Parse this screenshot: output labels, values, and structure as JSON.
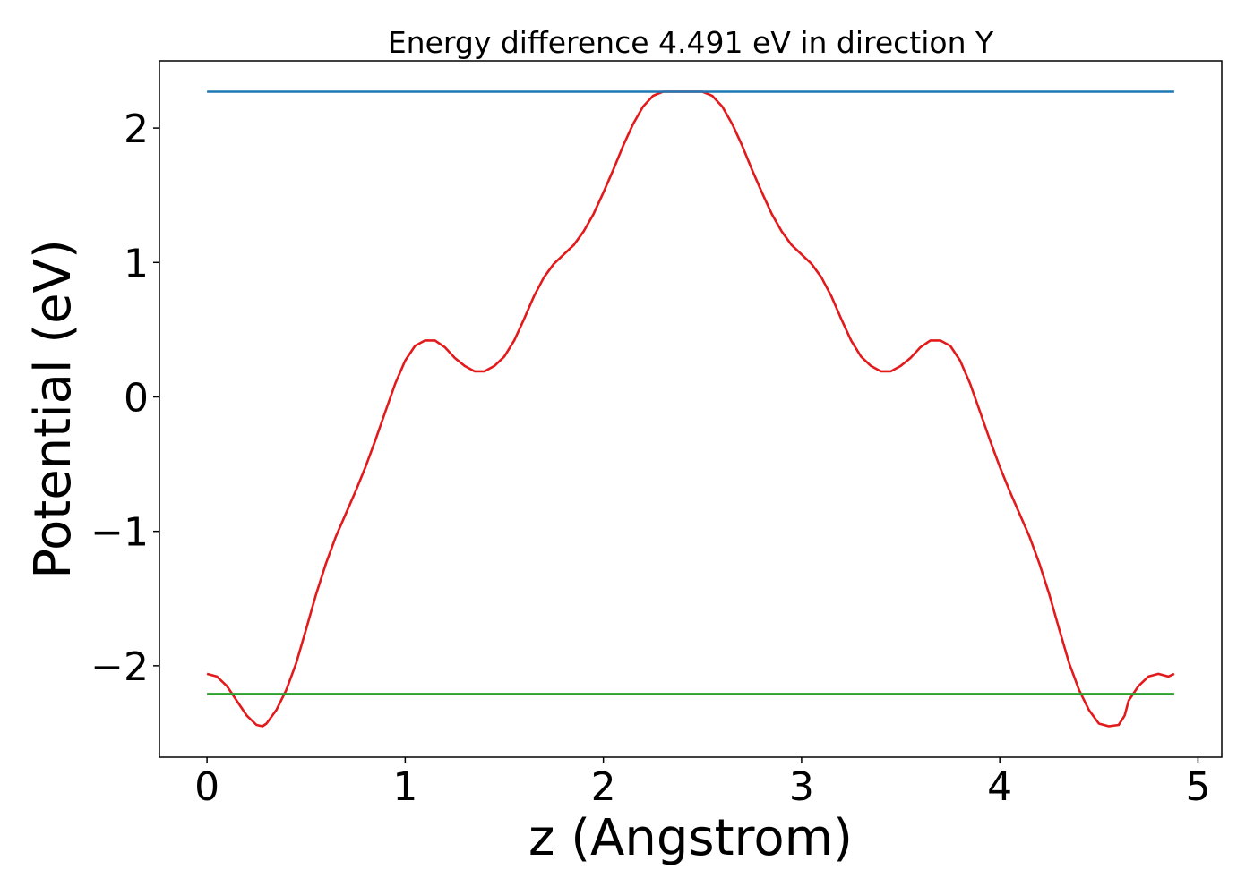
{
  "chart_data": {
    "type": "line",
    "title": "Energy difference 4.491 eV in direction Y",
    "xlabel": "z (Angstrom)",
    "ylabel": "Potential (eV)",
    "xlim": [
      -0.24,
      5.12
    ],
    "ylim": [
      -2.68,
      2.5
    ],
    "xticks": [
      0,
      1,
      2,
      3,
      4,
      5
    ],
    "xtick_labels": [
      "0",
      "1",
      "2",
      "3",
      "4",
      "5"
    ],
    "yticks": [
      -2,
      -1,
      0,
      1,
      2
    ],
    "ytick_labels": [
      "−2",
      "−1",
      "0",
      "1",
      "2"
    ],
    "grid": false,
    "series": [
      {
        "color": "#e31a1c",
        "x": [
          0.0,
          0.05,
          0.1,
          0.15,
          0.2,
          0.25,
          0.28,
          0.3,
          0.35,
          0.4,
          0.45,
          0.5,
          0.55,
          0.6,
          0.65,
          0.7,
          0.75,
          0.8,
          0.85,
          0.9,
          0.95,
          1.0,
          1.05,
          1.1,
          1.15,
          1.2,
          1.25,
          1.3,
          1.35,
          1.4,
          1.45,
          1.5,
          1.55,
          1.6,
          1.65,
          1.7,
          1.75,
          1.8,
          1.85,
          1.9,
          1.95,
          2.0,
          2.05,
          2.1,
          2.15,
          2.2,
          2.25,
          2.3,
          2.35,
          2.4,
          2.45,
          2.5,
          2.55,
          2.6,
          2.65,
          2.7,
          2.75,
          2.8,
          2.85,
          2.9,
          2.95,
          3.0,
          3.05,
          3.1,
          3.15,
          3.2,
          3.25,
          3.3,
          3.35,
          3.4,
          3.45,
          3.5,
          3.55,
          3.6,
          3.65,
          3.7,
          3.75,
          3.8,
          3.85,
          3.9,
          3.95,
          4.0,
          4.05,
          4.1,
          4.15,
          4.2,
          4.25,
          4.3,
          4.35,
          4.4,
          4.45,
          4.5,
          4.55,
          4.6,
          4.63,
          4.65,
          4.7,
          4.75,
          4.8,
          4.85,
          4.88
        ],
        "y": [
          -2.06,
          -2.08,
          -2.15,
          -2.26,
          -2.37,
          -2.44,
          -2.45,
          -2.43,
          -2.33,
          -2.18,
          -1.98,
          -1.73,
          -1.47,
          -1.24,
          -1.04,
          -0.87,
          -0.7,
          -0.52,
          -0.32,
          -0.11,
          0.1,
          0.27,
          0.38,
          0.42,
          0.42,
          0.37,
          0.29,
          0.23,
          0.19,
          0.19,
          0.23,
          0.3,
          0.42,
          0.58,
          0.75,
          0.89,
          0.99,
          1.06,
          1.13,
          1.23,
          1.36,
          1.52,
          1.69,
          1.87,
          2.03,
          2.16,
          2.24,
          2.27,
          2.27,
          2.27,
          2.27,
          2.27,
          2.24,
          2.16,
          2.03,
          1.87,
          1.69,
          1.52,
          1.36,
          1.23,
          1.13,
          1.06,
          0.99,
          0.89,
          0.75,
          0.58,
          0.42,
          0.3,
          0.23,
          0.19,
          0.19,
          0.23,
          0.29,
          0.37,
          0.42,
          0.42,
          0.38,
          0.27,
          0.1,
          -0.11,
          -0.32,
          -0.52,
          -0.7,
          -0.87,
          -1.04,
          -1.24,
          -1.47,
          -1.73,
          -1.98,
          -2.18,
          -2.33,
          -2.43,
          -2.45,
          -2.44,
          -2.37,
          -2.26,
          -2.15,
          -2.08,
          -2.06,
          -2.08,
          -2.06
        ]
      },
      {
        "color": "#1f77b4",
        "x": [
          0.0,
          4.88
        ],
        "y": [
          2.27,
          2.27
        ]
      },
      {
        "color": "#2ca02c",
        "x": [
          0.0,
          4.88
        ],
        "y": [
          -2.21,
          -2.21
        ]
      }
    ]
  }
}
